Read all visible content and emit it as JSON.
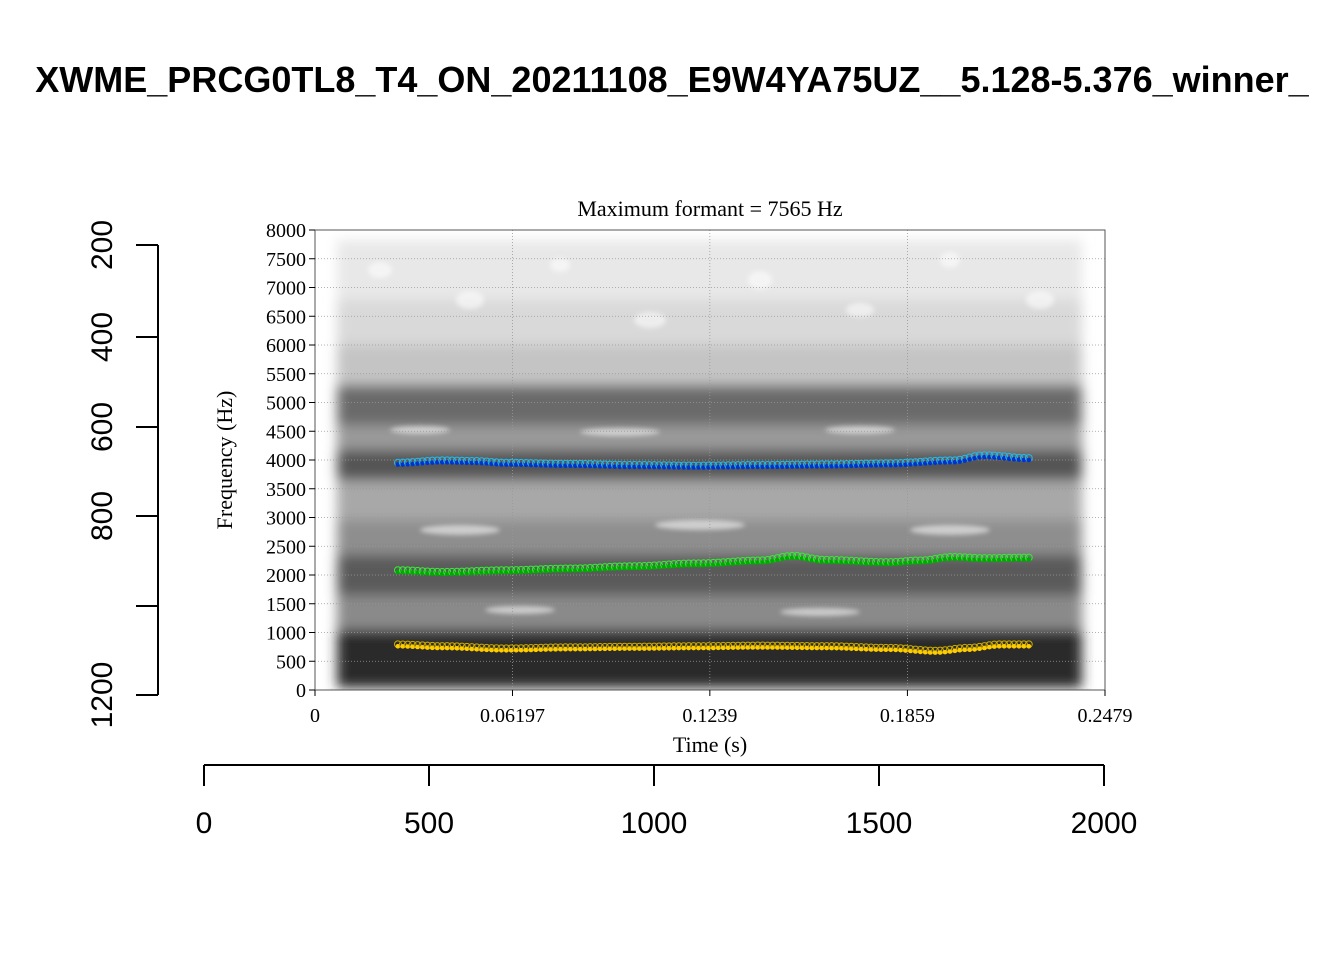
{
  "outer": {
    "title": "XWME_PRCG0TL8_T4_ON_20211108_E9W4YA75UZ__5.128-5.376_winner_",
    "x_ticks": [
      "0",
      "500",
      "1000",
      "1500",
      "2000"
    ],
    "y_ticks": [
      "200",
      "400",
      "600",
      "800",
      "1200"
    ]
  },
  "chart_data": {
    "type": "scatter",
    "title": "Maximum formant  =  7565 Hz",
    "xlabel": "Time (s)",
    "ylabel": "Frequency (Hz)",
    "xlim": [
      0,
      0.2479
    ],
    "ylim": [
      0,
      8000
    ],
    "x_tick_labels": [
      "0",
      "0.06197",
      "0.1239",
      "0.1859",
      "0.2479"
    ],
    "y_tick_labels": [
      "0",
      "500",
      "1000",
      "1500",
      "2000",
      "2500",
      "3000",
      "3500",
      "4000",
      "4500",
      "5000",
      "5500",
      "6000",
      "6500",
      "7000",
      "7500",
      "8000"
    ],
    "grid": true,
    "background": "grayscale spectrogram",
    "series": [
      {
        "color": "#0033cc",
        "ring_color": "#22bbee",
        "x": [
          0.026,
          0.04,
          0.05,
          0.06,
          0.08,
          0.1,
          0.12,
          0.14,
          0.16,
          0.18,
          0.2,
          0.21,
          0.224
        ],
        "y": [
          3920,
          3960,
          3950,
          3920,
          3900,
          3880,
          3870,
          3880,
          3890,
          3910,
          3960,
          4050,
          4000
        ]
      },
      {
        "color": "#00aa00",
        "ring_color": "#33ee33",
        "x": [
          0.026,
          0.04,
          0.06,
          0.08,
          0.1,
          0.12,
          0.14,
          0.15,
          0.16,
          0.18,
          0.19,
          0.2,
          0.21,
          0.224
        ],
        "y": [
          2050,
          2020,
          2050,
          2080,
          2120,
          2170,
          2220,
          2300,
          2230,
          2190,
          2220,
          2280,
          2260,
          2270
        ]
      },
      {
        "color": "#ffcc00",
        "ring_color": "#ccaa00",
        "x": [
          0.026,
          0.04,
          0.06,
          0.08,
          0.1,
          0.12,
          0.14,
          0.16,
          0.18,
          0.195,
          0.205,
          0.215,
          0.224
        ],
        "y": [
          760,
          730,
          690,
          710,
          720,
          730,
          740,
          730,
          700,
          650,
          700,
          760,
          760
        ]
      }
    ]
  }
}
